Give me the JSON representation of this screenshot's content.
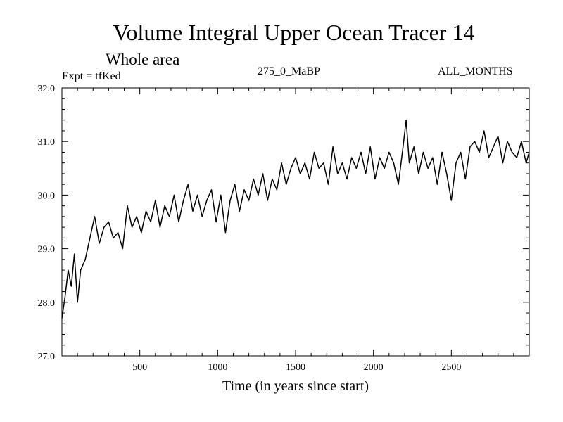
{
  "chart_data": {
    "type": "line",
    "title": "Volume Integral Upper Ocean Tracer 14",
    "subtitle": "Whole area",
    "annotations": {
      "expt": "Expt = tfKed",
      "run": "275_0_MaBP",
      "months": "ALL_MONTHS"
    },
    "xlabel": "Time (in years since start)",
    "ylabel": "",
    "xlim": [
      0,
      3000
    ],
    "ylim": [
      27.0,
      32.0
    ],
    "xticks": [
      500,
      1000,
      1500,
      2000,
      2500
    ],
    "xtick_labels": [
      "500",
      "1000",
      "1500",
      "2000",
      "2500"
    ],
    "yticks": [
      27.0,
      28.0,
      29.0,
      30.0,
      31.0,
      32.0
    ],
    "ytick_labels": [
      "27.0",
      "28.0",
      "29.0",
      "30.0",
      "31.0",
      "32.0"
    ],
    "grid": false,
    "series": [
      {
        "color": "#000000",
        "x": [
          0,
          20,
          40,
          60,
          80,
          100,
          120,
          150,
          180,
          210,
          240,
          270,
          300,
          330,
          360,
          390,
          420,
          450,
          480,
          510,
          540,
          570,
          600,
          630,
          660,
          690,
          720,
          750,
          780,
          810,
          840,
          870,
          900,
          930,
          960,
          990,
          1020,
          1050,
          1080,
          1110,
          1140,
          1170,
          1200,
          1230,
          1260,
          1290,
          1320,
          1350,
          1380,
          1410,
          1440,
          1470,
          1500,
          1530,
          1560,
          1590,
          1620,
          1650,
          1680,
          1710,
          1740,
          1770,
          1800,
          1830,
          1860,
          1890,
          1920,
          1950,
          1980,
          2010,
          2040,
          2070,
          2100,
          2130,
          2160,
          2190,
          2210,
          2230,
          2260,
          2290,
          2320,
          2350,
          2380,
          2410,
          2440,
          2470,
          2500,
          2530,
          2560,
          2590,
          2620,
          2650,
          2680,
          2710,
          2740,
          2770,
          2800,
          2830,
          2860,
          2890,
          2920,
          2950,
          2980,
          3000
        ],
        "values": [
          27.7,
          28.1,
          28.6,
          28.3,
          28.9,
          28.0,
          28.6,
          28.8,
          29.2,
          29.6,
          29.1,
          29.4,
          29.5,
          29.2,
          29.3,
          29.0,
          29.8,
          29.4,
          29.6,
          29.3,
          29.7,
          29.5,
          29.9,
          29.4,
          29.8,
          29.6,
          30.0,
          29.5,
          29.9,
          30.2,
          29.7,
          30.0,
          29.6,
          29.9,
          30.1,
          29.5,
          30.0,
          29.3,
          29.9,
          30.2,
          29.7,
          30.1,
          29.9,
          30.3,
          30.0,
          30.4,
          29.9,
          30.3,
          30.1,
          30.6,
          30.2,
          30.5,
          30.7,
          30.4,
          30.6,
          30.3,
          30.8,
          30.5,
          30.6,
          30.2,
          30.9,
          30.4,
          30.6,
          30.3,
          30.7,
          30.5,
          30.8,
          30.4,
          30.9,
          30.3,
          30.7,
          30.5,
          30.8,
          30.6,
          30.2,
          30.9,
          31.4,
          30.6,
          30.9,
          30.4,
          30.8,
          30.5,
          30.7,
          30.2,
          30.8,
          30.4,
          29.9,
          30.6,
          30.8,
          30.3,
          30.9,
          31.0,
          30.8,
          31.2,
          30.7,
          30.9,
          31.1,
          30.6,
          31.0,
          30.8,
          30.7,
          31.0,
          30.6,
          30.8
        ]
      }
    ]
  }
}
